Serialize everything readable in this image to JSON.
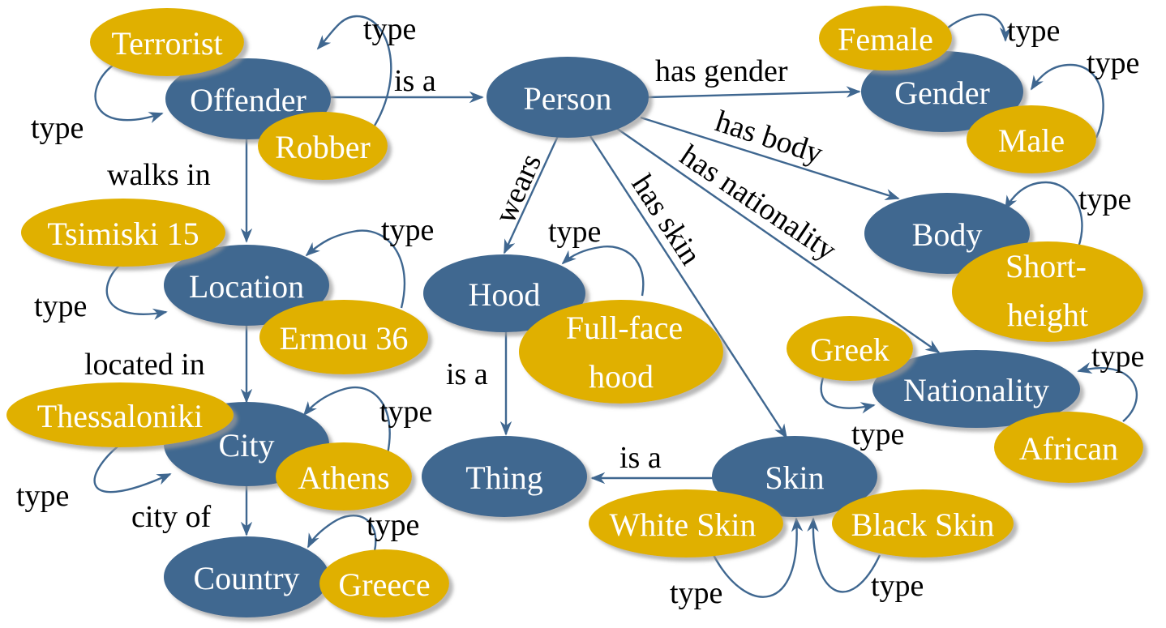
{
  "colors": {
    "class_node": "#3f6790",
    "instance_node": "#e0b000",
    "edge": "#3f6790",
    "shadow": "#b3b3b3"
  },
  "classes": {
    "offender": "Offender",
    "person": "Person",
    "gender": "Gender",
    "location": "Location",
    "hood": "Hood",
    "body": "Body",
    "nationality": "Nationality",
    "city": "City",
    "thing": "Thing",
    "skin": "Skin",
    "country": "Country"
  },
  "instances": {
    "terrorist": "Terrorist",
    "robber": "Robber",
    "female": "Female",
    "male": "Male",
    "tsimiski": "Tsimiski 15",
    "ermou": "Ermou 36",
    "fullface_1": "Full-face",
    "fullface_2": "hood",
    "short_1": "Short-",
    "short_2": "height",
    "greek": "Greek",
    "african": "African",
    "thessaloniki": "Thessaloniki",
    "athens": "Athens",
    "white_skin": "White Skin",
    "black_skin": "Black Skin",
    "greece": "Greece"
  },
  "relations": {
    "is_a": "is a",
    "has_gender": "has gender",
    "has_body": "has body",
    "has_nationality": "has nationality",
    "has_skin": "has skin",
    "wears": "wears",
    "walks_in": "walks in",
    "located_in": "located in",
    "city_of": "city of",
    "type": "type"
  }
}
